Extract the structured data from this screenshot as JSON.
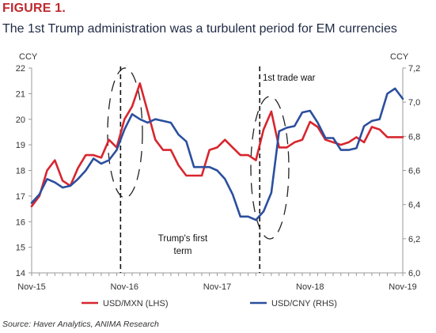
{
  "figure_label": "FIGURE 1.",
  "title": "The 1st Trump administration was a turbulent period for EM currencies",
  "source": "Source: Haver Analytics, ANIMA Research",
  "colors": {
    "mxn": "#d7262f",
    "cny": "#2b4f9e",
    "axis": "#999999",
    "text": "#333333"
  },
  "chart_data": {
    "type": "line",
    "left_axis": {
      "label": "CCY",
      "ylim": [
        14,
        22
      ],
      "ticks": [
        "14",
        "15",
        "16",
        "17",
        "18",
        "19",
        "20",
        "21",
        "22"
      ]
    },
    "right_axis": {
      "label": "CCY",
      "ylim": [
        6.0,
        7.2
      ],
      "ticks": [
        "6,0",
        "6,2",
        "6,4",
        "6,6",
        "6,8",
        "7,0",
        "7,2"
      ]
    },
    "x_tick_labels": [
      "Nov-15",
      "Nov-16",
      "Nov-17",
      "Nov-18",
      "Nov-19"
    ],
    "x_range": [
      0,
      48
    ],
    "series": [
      {
        "name": "USD/MXN (LHS)",
        "axis": "left",
        "x": [
          0,
          1,
          2,
          3,
          4,
          5,
          6,
          7,
          8,
          9,
          10,
          11,
          12,
          13,
          14,
          15,
          16,
          17,
          18,
          19,
          20,
          21,
          22,
          23,
          24,
          25,
          26,
          27,
          28,
          29,
          30,
          31,
          32,
          33,
          34,
          35,
          36,
          37,
          38,
          39,
          40,
          41,
          42,
          43,
          44,
          45,
          46,
          47,
          48
        ],
        "values": [
          16.6,
          17.0,
          18.0,
          18.4,
          17.6,
          17.4,
          18.1,
          18.6,
          18.6,
          18.5,
          19.2,
          18.9,
          20.0,
          20.5,
          21.4,
          20.3,
          19.2,
          18.8,
          18.8,
          18.2,
          17.8,
          17.8,
          17.8,
          18.8,
          18.9,
          19.2,
          18.9,
          18.6,
          18.6,
          18.4,
          19.6,
          20.3,
          18.9,
          18.9,
          19.1,
          19.2,
          19.9,
          19.7,
          19.2,
          19.1,
          19.0,
          19.1,
          19.3,
          19.1,
          19.7,
          19.6,
          19.3,
          19.3,
          19.3
        ]
      },
      {
        "name": "USD/CNY (RHS)",
        "axis": "right",
        "x": [
          0,
          1,
          2,
          3,
          4,
          5,
          6,
          7,
          8,
          9,
          10,
          11,
          12,
          13,
          14,
          15,
          16,
          17,
          18,
          19,
          20,
          21,
          22,
          23,
          24,
          25,
          26,
          27,
          28,
          29,
          30,
          31,
          32,
          33,
          34,
          35,
          36,
          37,
          38,
          39,
          40,
          41,
          42,
          43,
          44,
          45,
          46,
          47,
          48
        ],
        "values": [
          6.41,
          6.46,
          6.55,
          6.53,
          6.5,
          6.51,
          6.55,
          6.6,
          6.67,
          6.64,
          6.66,
          6.72,
          6.84,
          6.93,
          6.9,
          6.88,
          6.9,
          6.89,
          6.88,
          6.81,
          6.77,
          6.62,
          6.62,
          6.62,
          6.6,
          6.55,
          6.46,
          6.33,
          6.33,
          6.31,
          6.36,
          6.47,
          6.83,
          6.85,
          6.86,
          6.94,
          6.95,
          6.88,
          6.79,
          6.79,
          6.72,
          6.72,
          6.73,
          6.86,
          6.89,
          6.9,
          7.05,
          7.08,
          7.02
        ]
      }
    ],
    "annotations": [
      {
        "text": "Trump's first term",
        "lines": [
          "Trump's first",
          "term"
        ]
      },
      {
        "text": "1st trade war"
      }
    ],
    "events": [
      {
        "name": "election",
        "x": 11.5
      },
      {
        "name": "trade-war-start",
        "x": 29.5
      }
    ],
    "grid": false,
    "legend_position": "bottom"
  }
}
